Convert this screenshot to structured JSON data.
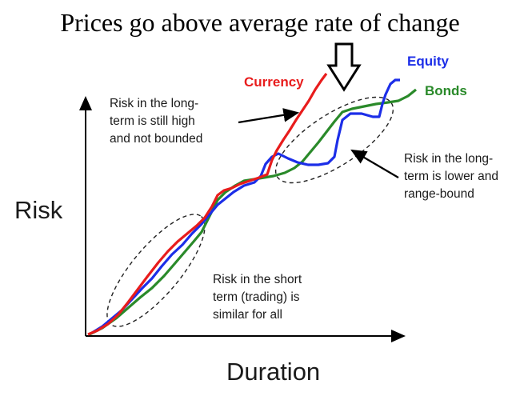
{
  "title": "Prices go above average rate of change",
  "axes": {
    "y_label": "Risk",
    "x_label": "Duration"
  },
  "series": [
    {
      "name": "Currency",
      "color": "#e81c1c"
    },
    {
      "name": "Equity",
      "color": "#1c2ee8"
    },
    {
      "name": "Bonds",
      "color": "#2a8a2a"
    }
  ],
  "annotations": {
    "long_high": [
      "Risk in the long-",
      "term is still high",
      "and not bounded"
    ],
    "long_lower": [
      "Risk in the long-",
      "term is lower and",
      "range-bound"
    ],
    "short": [
      "Risk in the short",
      "term (trading) is",
      "similar for all"
    ]
  },
  "icons": {
    "down_arrow": "down-arrow-icon"
  }
}
